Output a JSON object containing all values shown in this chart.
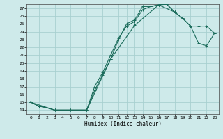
{
  "xlabel": "Humidex (Indice chaleur)",
  "bg_color": "#ceeaea",
  "grid_color": "#a8d0d0",
  "line_color": "#1a6b5a",
  "xlim": [
    -0.5,
    23.5
  ],
  "ylim": [
    13.5,
    27.5
  ],
  "xticks": [
    0,
    1,
    2,
    3,
    4,
    5,
    6,
    7,
    8,
    9,
    10,
    11,
    12,
    13,
    14,
    15,
    16,
    17,
    18,
    19,
    20,
    21,
    22,
    23
  ],
  "yticks": [
    14,
    15,
    16,
    17,
    18,
    19,
    20,
    21,
    22,
    23,
    24,
    25,
    26,
    27
  ],
  "line1_x": [
    0,
    1,
    2,
    3,
    4,
    5,
    6,
    7,
    8,
    9,
    10,
    11,
    12,
    13,
    14,
    15,
    16,
    17,
    18
  ],
  "line1_y": [
    15.0,
    14.5,
    14.3,
    14.0,
    14.0,
    14.0,
    14.0,
    14.0,
    16.5,
    18.5,
    20.5,
    23.0,
    25.0,
    25.5,
    27.2,
    27.2,
    27.4,
    27.5,
    26.5
  ],
  "line2_x": [
    0,
    1,
    2,
    3,
    4,
    5,
    6,
    7,
    8,
    9,
    10,
    11,
    12,
    13,
    14,
    15,
    16,
    17,
    18,
    19,
    20,
    21,
    22,
    23
  ],
  "line2_y": [
    15.0,
    14.5,
    14.3,
    14.0,
    14.0,
    14.0,
    14.0,
    14.0,
    17.0,
    18.8,
    21.0,
    23.2,
    24.7,
    25.3,
    26.8,
    27.2,
    27.4,
    27.5,
    26.5,
    25.7,
    24.7,
    24.7,
    24.7,
    23.8
  ],
  "line3_x": [
    0,
    3,
    7,
    10,
    13,
    16,
    18,
    19,
    20,
    21,
    22,
    23
  ],
  "line3_y": [
    15.0,
    14.0,
    14.0,
    20.5,
    24.8,
    27.4,
    26.5,
    25.7,
    24.7,
    22.5,
    22.2,
    23.8
  ]
}
